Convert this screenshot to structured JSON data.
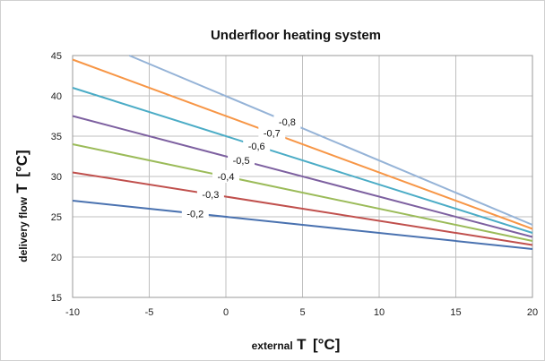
{
  "chart_data": {
    "type": "line",
    "title": "Underfloor heating system",
    "xlabel": {
      "main": "T",
      "unit": "[°C]",
      "prefix": "external"
    },
    "ylabel": {
      "main": "T",
      "unit": "[°C]",
      "prefix": "delivery flow"
    },
    "xlim": [
      -10,
      20
    ],
    "ylim": [
      15,
      45
    ],
    "x_ticks": [
      "-10",
      "-5",
      "0",
      "5",
      "10",
      "15",
      "20"
    ],
    "y_ticks": [
      "15",
      "20",
      "25",
      "30",
      "35",
      "40",
      "45"
    ],
    "grid": true,
    "series": [
      {
        "name": "-0,2",
        "color": "#4a72b0",
        "x": [
          -10,
          20
        ],
        "y": [
          27,
          21
        ]
      },
      {
        "name": "-0,3",
        "color": "#c0504d",
        "x": [
          -10,
          20
        ],
        "y": [
          30.5,
          21.5
        ]
      },
      {
        "name": "-0,4",
        "color": "#9bbb59",
        "x": [
          -10,
          20
        ],
        "y": [
          34,
          22
        ]
      },
      {
        "name": "-0,5",
        "color": "#7d60a0",
        "x": [
          -10,
          20
        ],
        "y": [
          37.5,
          22.5
        ]
      },
      {
        "name": "-0,6",
        "color": "#4bacc6",
        "x": [
          -10,
          20
        ],
        "y": [
          41,
          23
        ]
      },
      {
        "name": "-0,7",
        "color": "#f79646",
        "x": [
          -10,
          20
        ],
        "y": [
          44.5,
          23.5
        ]
      },
      {
        "name": "-0,8",
        "color": "#95b3d7",
        "x": [
          -6.3,
          20
        ],
        "y": [
          45,
          24
        ]
      }
    ]
  }
}
